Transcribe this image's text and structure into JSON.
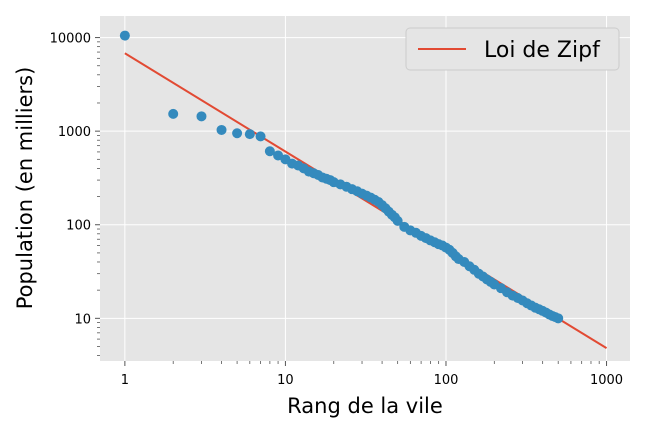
{
  "chart_data": {
    "type": "scatter",
    "xscale": "log",
    "yscale": "log",
    "xlim": [
      0.7,
      1400
    ],
    "ylim": [
      3.5,
      17000
    ],
    "xlabel": "Rang de la vile",
    "ylabel": "Population (en milliers)",
    "xticks": [
      1,
      10,
      100,
      1000
    ],
    "xtick_labels": [
      "1",
      "10",
      "100",
      "1000"
    ],
    "yticks": [
      10,
      100,
      1000,
      10000
    ],
    "ytick_labels": [
      "10",
      "100",
      "1000",
      "10000"
    ],
    "grid": true,
    "legend": {
      "position": "top-right",
      "entries": [
        "Loi de Zipf"
      ]
    },
    "colors": {
      "points": "#348abd",
      "fit": "#e24a33",
      "background": "#e5e5e5",
      "grid": "#ffffff"
    },
    "series": [
      {
        "kind": "scatter",
        "ranks": [
          1,
          2,
          3,
          4,
          5,
          6,
          7,
          8,
          9,
          10,
          11,
          12,
          13,
          14,
          15,
          16,
          17,
          18,
          19,
          20,
          22,
          24,
          26,
          28,
          30,
          32,
          34,
          36,
          38,
          40,
          42,
          44,
          46,
          48,
          50,
          55,
          60,
          65,
          70,
          75,
          80,
          85,
          90,
          95,
          100,
          105,
          110,
          115,
          120,
          130,
          140,
          150,
          160,
          170,
          180,
          190,
          200,
          220,
          240,
          260,
          280,
          300,
          320,
          340,
          360,
          380,
          400,
          420,
          440,
          460,
          480,
          500
        ],
        "values": [
          10500,
          1530,
          1440,
          1030,
          950,
          930,
          880,
          610,
          550,
          500,
          450,
          430,
          400,
          370,
          355,
          340,
          320,
          310,
          300,
          285,
          270,
          255,
          240,
          228,
          215,
          205,
          195,
          185,
          175,
          162,
          150,
          138,
          128,
          120,
          110,
          95,
          87,
          82,
          76,
          72,
          68,
          65,
          62,
          60,
          57,
          54,
          50,
          46,
          43,
          40,
          36,
          33,
          30,
          28,
          26,
          24.5,
          23,
          21,
          19,
          17.5,
          16.5,
          15.5,
          14.5,
          13.7,
          13,
          12.5,
          12,
          11.5,
          11,
          10.6,
          10.3,
          10
        ]
      },
      {
        "kind": "line",
        "name": "Loi de Zipf",
        "x": [
          1,
          1000
        ],
        "y": [
          6800,
          4.8
        ]
      }
    ]
  }
}
